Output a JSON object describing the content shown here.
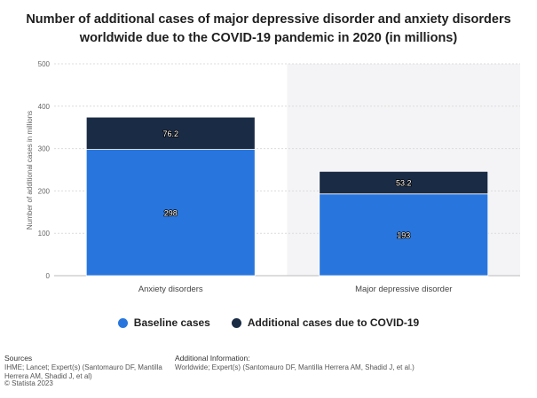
{
  "title": {
    "line1": "Number of additional cases of major depressive disorder and anxiety disorders",
    "line2": "worldwide due to the COVID-19 pandemic in 2020 (in millions)"
  },
  "colors": {
    "baseline": "#2876dd",
    "additional": "#1a2b45",
    "grid": "#dcdcdc",
    "shade": "#f4f4f6"
  },
  "chart_data": {
    "type": "bar",
    "stacked": true,
    "categories": [
      "Anxiety disorders",
      "Major depressive disorder"
    ],
    "series": [
      {
        "name": "Baseline cases",
        "values": [
          298,
          193
        ]
      },
      {
        "name": "Additional cases due to COVID-19",
        "values": [
          76.2,
          53.2
        ]
      }
    ],
    "data_labels": [
      [
        "298",
        "193"
      ],
      [
        "76.2",
        "53.2"
      ]
    ],
    "ylabel": "Number of additional cases in millions",
    "xlabel": "",
    "ylim": [
      0,
      500
    ],
    "yticks": [
      0,
      100,
      200,
      300,
      400,
      500
    ],
    "grid": true,
    "legend_position": "bottom"
  },
  "footer": {
    "sources_heading": "Sources",
    "sources_lines": [
      "IHME; Lancet; Expert(s) (Santomauro DF, Mantilla",
      "Herrera AM, Shadid J, et al)"
    ],
    "copyright": "© Statista 2023",
    "additional_heading": "Additional Information:",
    "additional_text": "Worldwide; Expert(s) (Santomauro DF, Mantilla Herrera AM, Shadid J, et al.)"
  }
}
